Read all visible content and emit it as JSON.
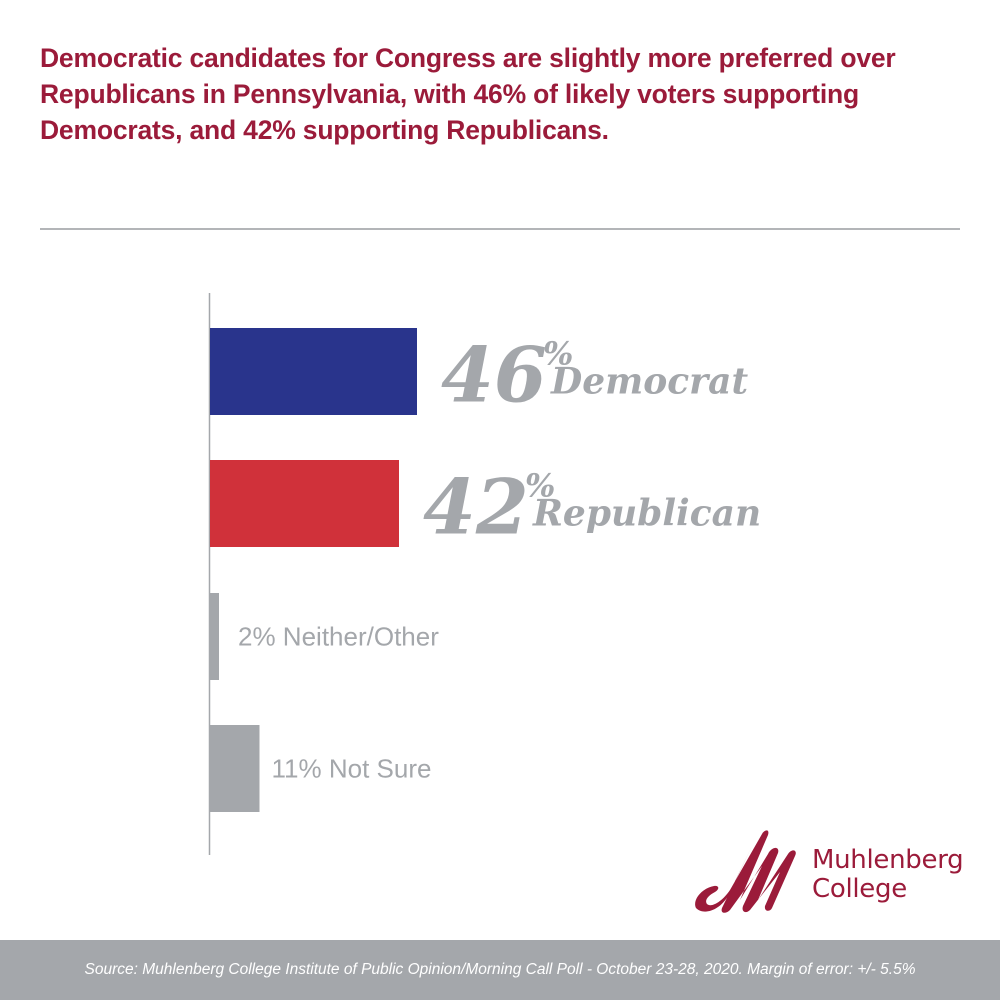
{
  "headline": "Democratic candidates for Congress are slightly more preferred over Republicans in Pennsylvania, with 46% of likely voters supporting Democrats, and 42% supporting Republicans.",
  "logo": {
    "icon": "script-m-logo-icon",
    "line1": "Muhlenberg",
    "line2": "College",
    "color": "#9b1b3a"
  },
  "footer": {
    "source": "Source: Muhlenberg College Institute of Public Opinion/Morning Call Poll - October 23-28, 2020. Margin of error: +/- 5.5%"
  },
  "colors": {
    "headline": "#9b1b3a",
    "democrat": "#29348c",
    "republican": "#d0313a",
    "neutral": "#a4a7ab",
    "axis": "#a4a7ab",
    "footer_bg": "#a4a7ab"
  },
  "chart_data": {
    "type": "bar",
    "orientation": "horizontal",
    "title": "Democratic candidates for Congress are slightly more preferred over Republicans in Pennsylvania, with 46% of likely voters supporting Democrats, and 42% supporting Republicans.",
    "xlabel": "",
    "ylabel": "",
    "unit": "%",
    "xlim": [
      0,
      100
    ],
    "grid": false,
    "legend": "none",
    "categories": [
      "Democrat",
      "Republican",
      "Neither/Other",
      "Not Sure"
    ],
    "values": [
      46,
      42,
      2,
      11
    ],
    "bar_colors": [
      "#29348c",
      "#d0313a",
      "#a4a7ab",
      "#a4a7ab"
    ],
    "labels": [
      {
        "value_text": "46",
        "pct": "%",
        "name": "Democrat",
        "style": "large"
      },
      {
        "value_text": "42",
        "pct": "%",
        "name": "Republican",
        "style": "large"
      },
      {
        "value_text": "2% Neither/Other",
        "style": "small"
      },
      {
        "value_text": "11% Not Sure",
        "style": "small"
      }
    ]
  }
}
